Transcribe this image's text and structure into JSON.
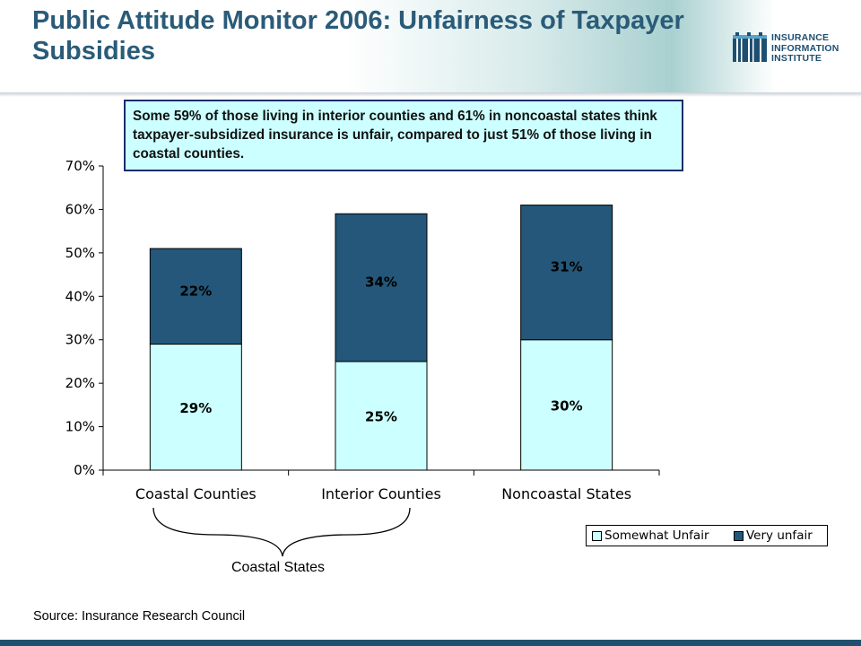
{
  "slide": {
    "title": "Public Attitude Monitor 2006: Unfairness of Taxpayer Subsidies",
    "logo": {
      "lines": [
        "INSURANCE",
        "INFORMATION",
        "INSTITUTE"
      ],
      "icon": "iii-logo-icon",
      "color": "#1e4f71"
    },
    "callout": "Some 59% of those living in interior counties and 61% in noncoastal states think taxpayer-subsidized insurance is unfair, compared to just 51% of those living in coastal counties.",
    "brace_label": "Coastal States",
    "source": "Source: Insurance Research Council"
  },
  "chart_data": {
    "type": "bar",
    "stacked": true,
    "categories": [
      "Coastal Counties",
      "Interior Counties",
      "Noncoastal States"
    ],
    "series": [
      {
        "name": "Somewhat Unfair",
        "values": [
          29,
          25,
          30
        ],
        "labels": [
          "29%",
          "25%",
          "30%"
        ],
        "color": "#ccffff"
      },
      {
        "name": "Very unfair",
        "values": [
          22,
          34,
          31
        ],
        "labels": [
          "22%",
          "34%",
          "31%"
        ],
        "color": "#245779"
      }
    ],
    "ylim": [
      0,
      70
    ],
    "yticks": [
      0,
      10,
      20,
      30,
      40,
      50,
      60,
      70
    ],
    "ytick_labels": [
      "0%",
      "10%",
      "20%",
      "30%",
      "40%",
      "50%",
      "60%",
      "70%"
    ],
    "title": "",
    "xlabel": "",
    "ylabel": "",
    "legend_position": "bottom-right",
    "grid": false
  }
}
